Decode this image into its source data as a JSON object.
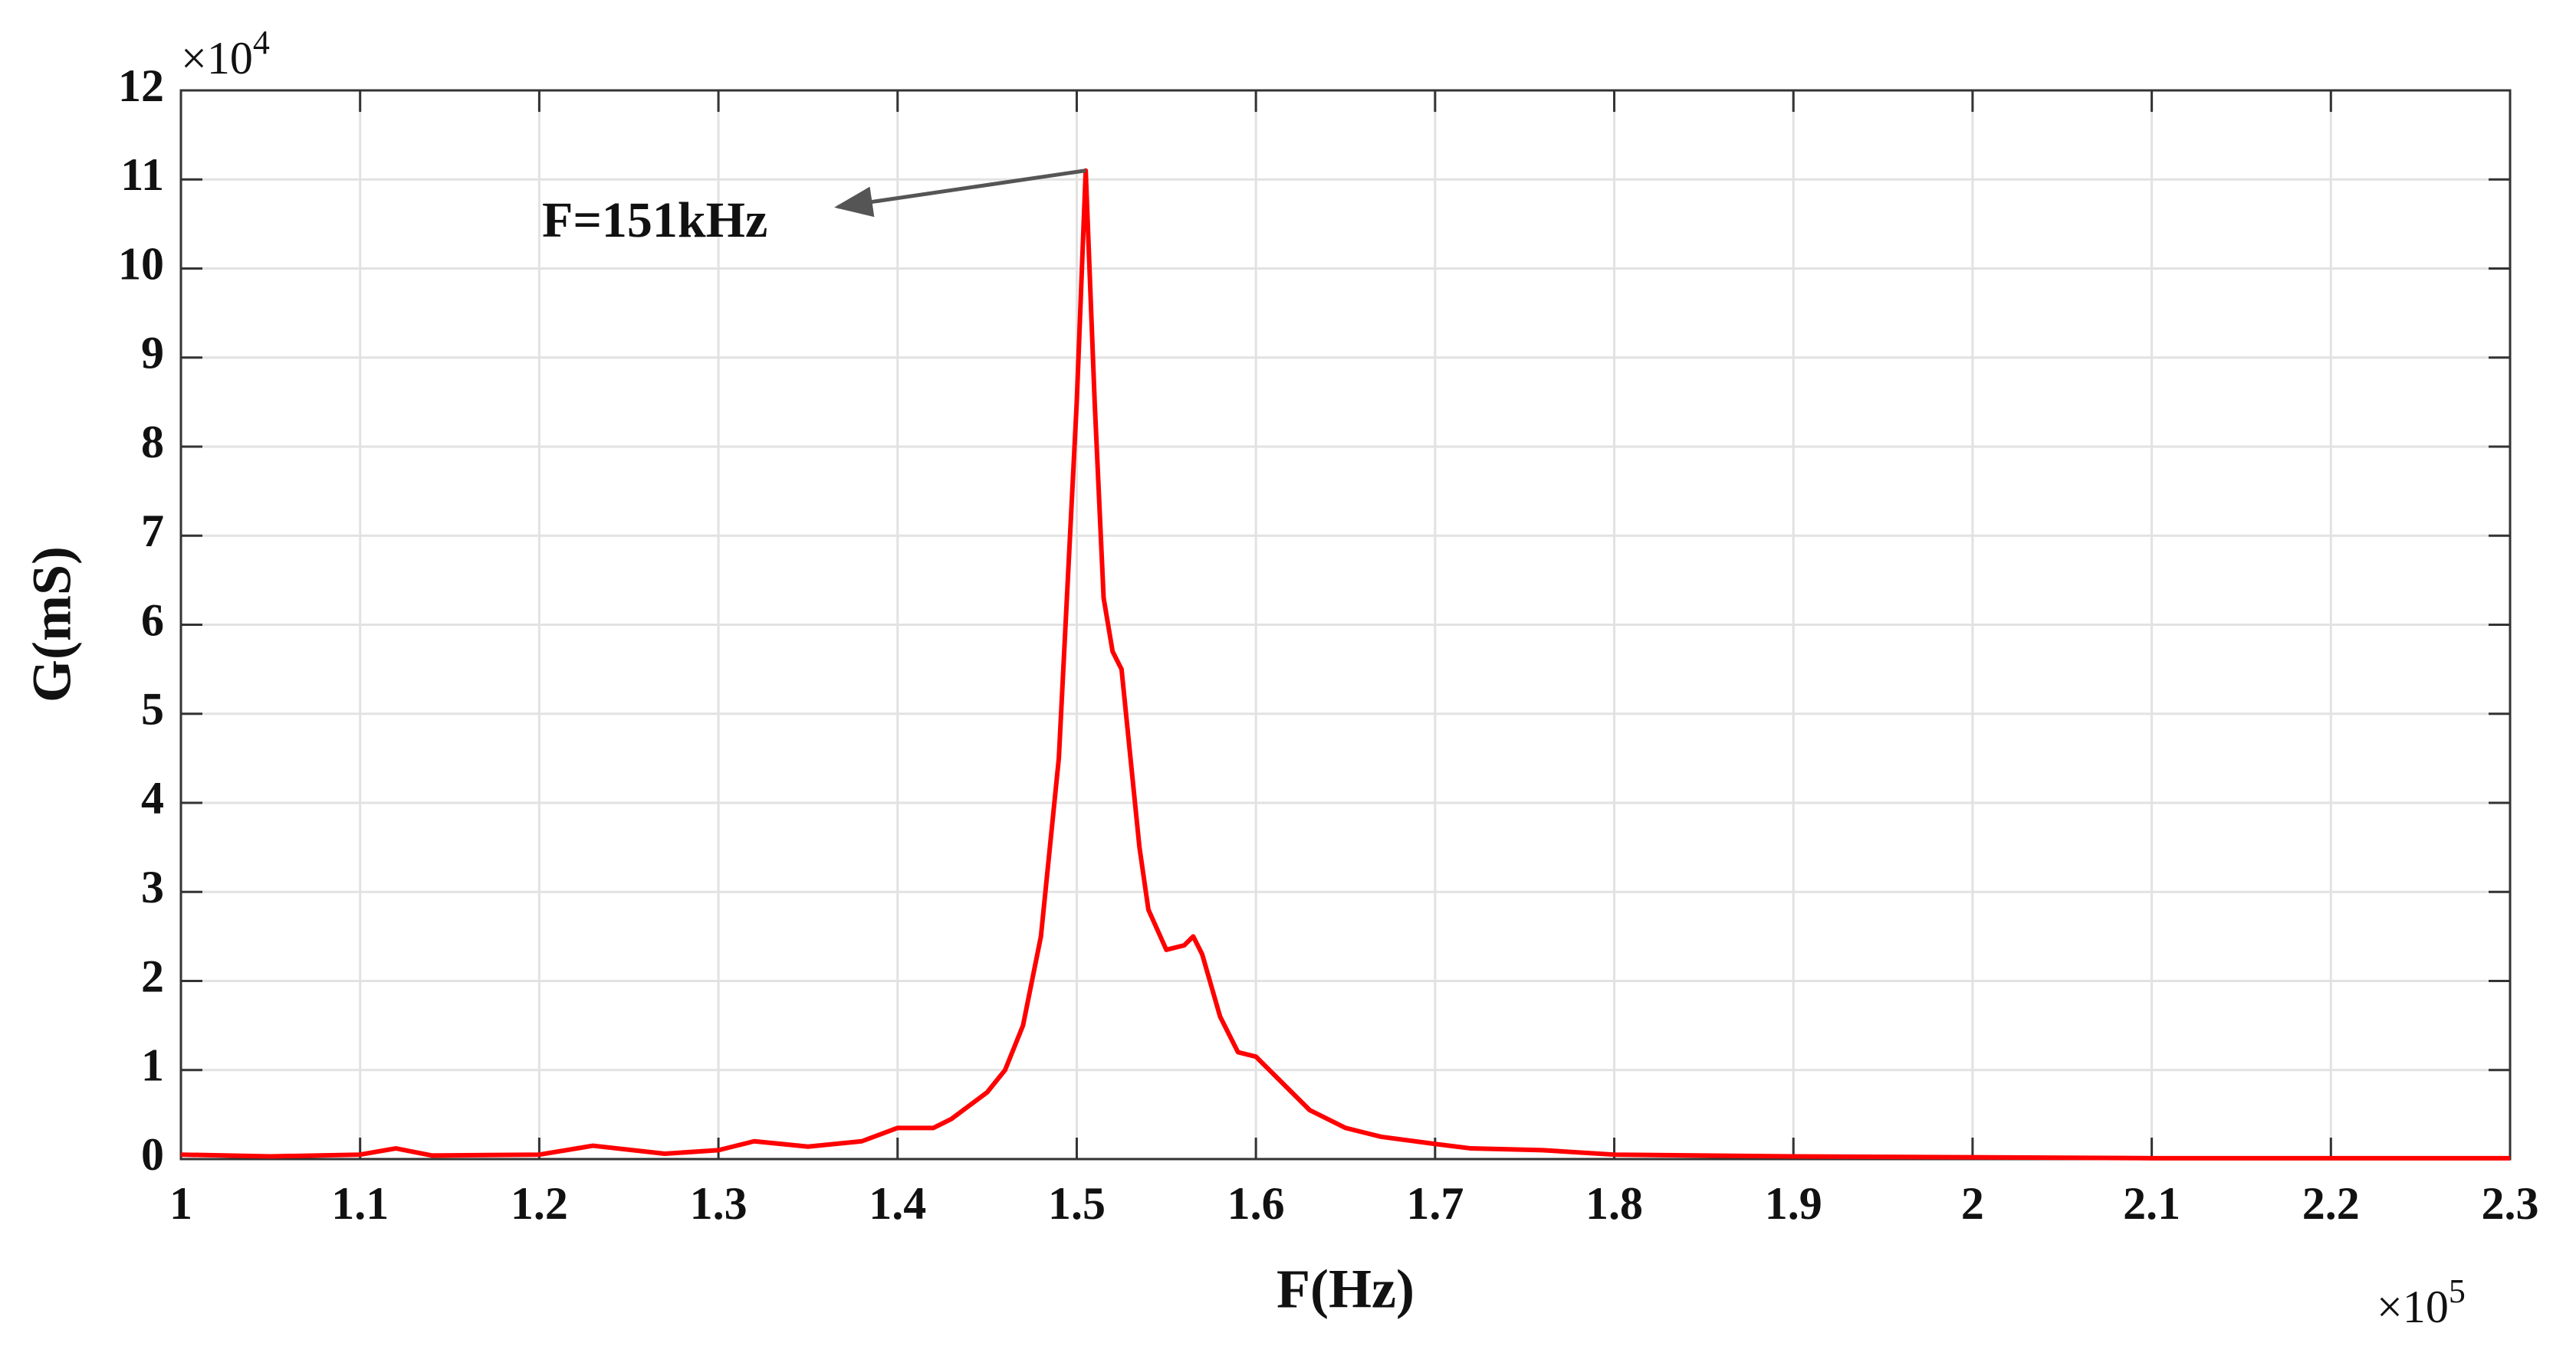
{
  "chart_data": {
    "type": "line",
    "annotation": "F=151kHz",
    "xlabel": "F(Hz)",
    "ylabel": "G(mS)",
    "x_multiplier": {
      "base": "×10",
      "exponent": "5"
    },
    "y_multiplier": {
      "base": "×10",
      "exponent": "4"
    },
    "x": [
      1.0,
      1.05,
      1.1,
      1.12,
      1.14,
      1.2,
      1.23,
      1.27,
      1.3,
      1.32,
      1.35,
      1.38,
      1.4,
      1.42,
      1.43,
      1.44,
      1.45,
      1.46,
      1.47,
      1.48,
      1.49,
      1.5,
      1.505,
      1.51,
      1.515,
      1.52,
      1.525,
      1.53,
      1.535,
      1.54,
      1.55,
      1.56,
      1.565,
      1.57,
      1.58,
      1.59,
      1.6,
      1.61,
      1.62,
      1.63,
      1.65,
      1.67,
      1.7,
      1.72,
      1.76,
      1.8,
      1.9,
      2.0,
      2.1,
      2.3
    ],
    "series": [
      {
        "color": "#ff0000",
        "values": [
          0.05,
          0.03,
          0.05,
          0.12,
          0.04,
          0.05,
          0.15,
          0.06,
          0.1,
          0.2,
          0.14,
          0.2,
          0.35,
          0.35,
          0.45,
          0.6,
          0.75,
          1.0,
          1.5,
          2.5,
          4.5,
          8.5,
          11.1,
          8.5,
          6.3,
          5.7,
          5.5,
          4.5,
          3.5,
          2.8,
          2.35,
          2.4,
          2.5,
          2.3,
          1.6,
          1.2,
          1.15,
          0.95,
          0.75,
          0.55,
          0.35,
          0.25,
          0.17,
          0.12,
          0.1,
          0.05,
          0.03,
          0.02,
          0.01,
          0.01
        ]
      }
    ],
    "xlim": [
      1,
      2.3
    ],
    "xticks": [
      1,
      1.1,
      1.2,
      1.3,
      1.4,
      1.5,
      1.6,
      1.7,
      1.8,
      1.9,
      2,
      2.1,
      2.2,
      2.3
    ],
    "ylim": [
      0,
      12
    ],
    "yticks": [
      0,
      1,
      2,
      3,
      4,
      5,
      6,
      7,
      8,
      9,
      10,
      11,
      12
    ],
    "grid": true
  }
}
